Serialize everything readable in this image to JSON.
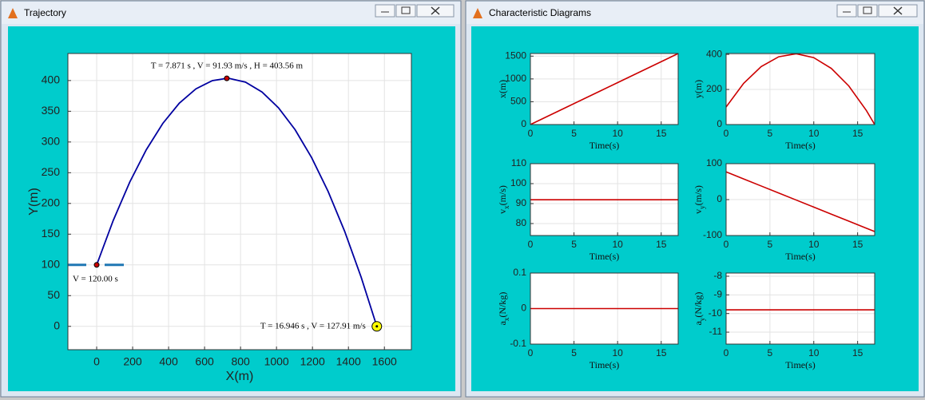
{
  "windows": [
    "Trajectory",
    "Characteristic Diagrams"
  ],
  "chart_data": [
    {
      "type": "line",
      "xlabel": "X(m)",
      "ylabel": "Y(m)",
      "x": [
        0,
        91.9,
        183.9,
        275.8,
        367.7,
        459.7,
        551.6,
        643.5,
        723.6,
        735.4,
        827.4,
        919.3,
        1011.2,
        1103.2,
        1195.1,
        1287.0,
        1379.0,
        1470.9,
        1557.9
      ],
      "series": [
        {
          "color": "#0000a0",
          "values": [
            100,
            172.2,
            234.7,
            287.3,
            330.2,
            363.2,
            386.4,
            399.9,
            403.56,
            403.5,
            397.4,
            381.4,
            355.6,
            320.1,
            274.7,
            219.6,
            154.6,
            79.8,
            0
          ]
        }
      ],
      "points": [
        {
          "x": 0,
          "y": 100,
          "label": "V = 120.00 s",
          "color": "#cc0000"
        },
        {
          "x": 723.6,
          "y": 403.56,
          "label": "T = 7.871 s , V = 91.93 m/s , H = 403.56 m",
          "color": "#cc0000"
        },
        {
          "x": 1557.9,
          "y": 0,
          "label": "T = 16.946 s , V = 127.91 m/s",
          "color": "#ffff00"
        }
      ],
      "xlim": [
        -160,
        1750
      ],
      "ylim": [
        -38,
        444
      ],
      "xticks": [
        0,
        200,
        400,
        600,
        800,
        1000,
        1200,
        1400,
        1600
      ],
      "yticks": [
        0,
        50,
        100,
        150,
        200,
        250,
        300,
        350,
        400
      ],
      "grid": true
    },
    {
      "type": "line",
      "xlabel": "Time(s)",
      "ylabel": [
        "x",
        "",
        "(m)"
      ],
      "x": [
        0,
        2,
        4,
        6,
        8,
        10,
        12,
        14,
        16,
        16.946
      ],
      "series": [
        {
          "color": "#cc0000",
          "values": [
            0,
            183.9,
            367.7,
            551.6,
            735.4,
            919.3,
            1103.2,
            1287.0,
            1470.9,
            1557.9
          ]
        }
      ],
      "xlim": [
        0,
        16.946
      ],
      "ylim": [
        0,
        1557.9
      ],
      "xticks": [
        0,
        5,
        10,
        15
      ],
      "yticks": [
        0,
        500,
        1000,
        1500
      ],
      "grid": true
    },
    {
      "type": "line",
      "xlabel": "Time(s)",
      "ylabel": [
        "y",
        "",
        "(m)"
      ],
      "x": [
        0,
        2,
        4,
        6,
        8,
        10,
        12,
        14,
        16,
        16.946
      ],
      "series": [
        {
          "color": "#cc0000",
          "values": [
            100,
            234.7,
            330.2,
            386.4,
            403.5,
            381.4,
            320.1,
            219.6,
            79.8,
            0
          ]
        }
      ],
      "xlim": [
        0,
        16.946
      ],
      "ylim": [
        0,
        405
      ],
      "xticks": [
        0,
        5,
        10,
        15
      ],
      "yticks": [
        0,
        200,
        400
      ],
      "grid": true
    },
    {
      "type": "line",
      "xlabel": "Time(s)",
      "ylabel": [
        "v",
        "x",
        "(m/s)"
      ],
      "x": [
        0,
        2,
        4,
        6,
        8,
        10,
        12,
        14,
        16,
        16.946
      ],
      "series": [
        {
          "color": "#cc0000",
          "values": [
            91.93,
            91.93,
            91.93,
            91.93,
            91.93,
            91.93,
            91.93,
            91.93,
            91.93,
            91.93
          ]
        }
      ],
      "xlim": [
        0,
        16.946
      ],
      "ylim": [
        74,
        110
      ],
      "xticks": [
        0,
        5,
        10,
        15
      ],
      "yticks": [
        80,
        90,
        100,
        110
      ],
      "grid": true
    },
    {
      "type": "line",
      "xlabel": "Time(s)",
      "ylabel": [
        "v",
        "y",
        "(m/s)"
      ],
      "x": [
        0,
        2,
        4,
        6,
        8,
        10,
        12,
        14,
        16,
        16.946
      ],
      "series": [
        {
          "color": "#cc0000",
          "values": [
            77.14,
            57.54,
            37.94,
            18.34,
            -1.26,
            -20.86,
            -40.46,
            -60.06,
            -79.66,
            -88.93
          ]
        }
      ],
      "xlim": [
        0,
        16.946
      ],
      "ylim": [
        -100,
        100
      ],
      "xticks": [
        0,
        5,
        10,
        15
      ],
      "yticks": [
        -100,
        0,
        100
      ],
      "grid": true
    },
    {
      "type": "line",
      "xlabel": "Time(s)",
      "ylabel": [
        "a",
        "x",
        "(N/kg)"
      ],
      "x": [
        0,
        2,
        4,
        6,
        8,
        10,
        12,
        14,
        16,
        16.946
      ],
      "series": [
        {
          "color": "#cc0000",
          "values": [
            0,
            0,
            0,
            0,
            0,
            0,
            0,
            0,
            0,
            0
          ]
        }
      ],
      "xlim": [
        0,
        16.946
      ],
      "ylim": [
        -0.1,
        0.1
      ],
      "xticks": [
        0,
        5,
        10,
        15
      ],
      "yticks": [
        -0.1,
        0,
        0.1
      ],
      "grid": true
    },
    {
      "type": "line",
      "xlabel": "Time(s)",
      "ylabel": [
        "a",
        "y",
        "(N/kg)"
      ],
      "x": [
        0,
        2,
        4,
        6,
        8,
        10,
        12,
        14,
        16,
        16.946
      ],
      "series": [
        {
          "color": "#cc0000",
          "values": [
            -9.8,
            -9.8,
            -9.8,
            -9.8,
            -9.8,
            -9.8,
            -9.8,
            -9.8,
            -9.8,
            -9.8
          ]
        }
      ],
      "xlim": [
        0,
        16.946
      ],
      "ylim": [
        -11.64,
        -7.83
      ],
      "xticks": [
        0,
        5,
        10,
        15
      ],
      "yticks": [
        -8,
        -9,
        -10,
        -11
      ],
      "grid": true
    }
  ]
}
